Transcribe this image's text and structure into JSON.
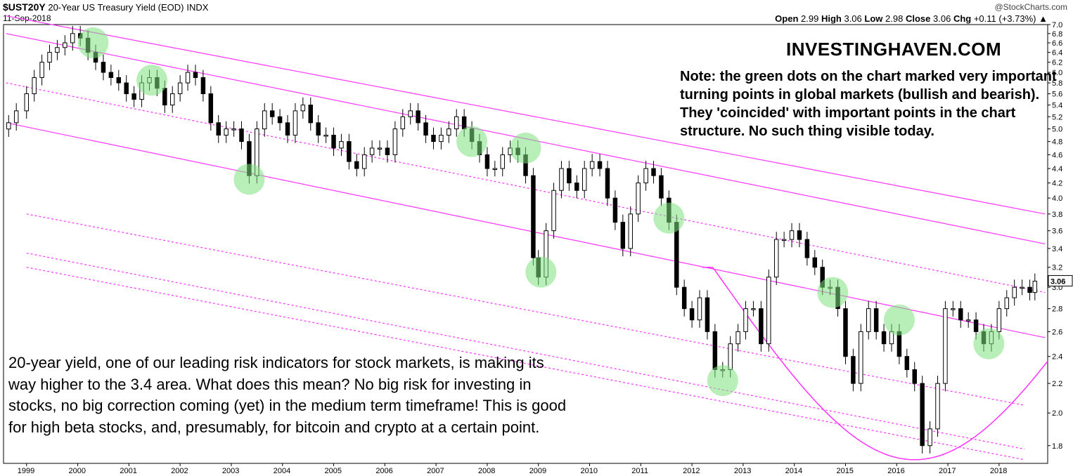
{
  "header": {
    "symbol": "$UST20Y",
    "description": "20-Year US Treasury Yield (EOD)",
    "exchange": "INDX",
    "date": "11-Sep-2018",
    "credit": "@StockCharts.com",
    "ohlc": {
      "open_label": "Open",
      "open": "2.99",
      "high_label": "High",
      "high": "3.06",
      "low_label": "Low",
      "low": "2.98",
      "close_label": "Close",
      "close": "3.06",
      "chg_label": "Chg",
      "chg": "+0.11 (+3.73%)"
    }
  },
  "annotations": {
    "brand": "INVESTINGHAVEN.COM",
    "note": "Note: the green dots on the chart marked very important turning points in global markets (bullish and bearish). They 'coincided' with important points in the chart structure. No such thing visible today.",
    "comment": "20-year yield, one of our leading risk indicators for stock markets, is making its way higher to the 3.4 area. What does this mean? No big risk for investing in stocks, no big correction coming (yet) in the medium term timeframe! This is good for high beta stocks, and, presumably, for bitcoin and crypto at a certain point."
  },
  "colors": {
    "channel": "#ff33ff",
    "marker_fill": "#7ee07e",
    "candle_up": "#ffffff",
    "candle_down": "#000000"
  },
  "chart_data": {
    "type": "candlestick",
    "title": "20-Year US Treasury Yield (EOD)",
    "xlabel": "",
    "ylabel": "",
    "x_ticks": [
      "1999",
      "2000",
      "2001",
      "2002",
      "2003",
      "2004",
      "2005",
      "2006",
      "2007",
      "2008",
      "2009",
      "2010",
      "2011",
      "2012",
      "2013",
      "2014",
      "2015",
      "2016",
      "2017",
      "2018"
    ],
    "y_ticks": [
      "1.8",
      "2.0",
      "2.2",
      "2.4",
      "2.6",
      "2.8",
      "3.0",
      "3.2",
      "3.4",
      "3.6",
      "3.8",
      "4.0",
      "4.2",
      "4.4",
      "4.6",
      "4.8",
      "5.0",
      "5.2",
      "5.4",
      "5.6",
      "5.8",
      "6.0",
      "6.2",
      "6.4",
      "6.6",
      "6.8",
      "7.0"
    ],
    "y_scale": "log",
    "ylim": [
      1.7,
      7.0
    ],
    "last_value": "3.06",
    "grid": false,
    "series": [
      {
        "name": "",
        "points": [
          [
            1998.65,
            5.1
          ],
          [
            1998.8,
            5.3
          ],
          [
            1999.0,
            5.6
          ],
          [
            1999.15,
            5.9
          ],
          [
            1999.3,
            6.2
          ],
          [
            1999.45,
            6.4
          ],
          [
            1999.6,
            6.5
          ],
          [
            1999.75,
            6.6
          ],
          [
            1999.9,
            6.8
          ],
          [
            2000.05,
            6.7
          ],
          [
            2000.2,
            6.4
          ],
          [
            2000.35,
            6.2
          ],
          [
            2000.5,
            6.0
          ],
          [
            2000.65,
            5.9
          ],
          [
            2000.8,
            5.8
          ],
          [
            2000.95,
            5.6
          ],
          [
            2001.1,
            5.5
          ],
          [
            2001.25,
            5.8
          ],
          [
            2001.4,
            5.9
          ],
          [
            2001.55,
            5.7
          ],
          [
            2001.7,
            5.4
          ],
          [
            2001.85,
            5.6
          ],
          [
            2002.0,
            5.8
          ],
          [
            2002.15,
            6.0
          ],
          [
            2002.3,
            5.9
          ],
          [
            2002.45,
            5.6
          ],
          [
            2002.6,
            5.1
          ],
          [
            2002.75,
            4.9
          ],
          [
            2002.9,
            5.0
          ],
          [
            2003.05,
            5.0
          ],
          [
            2003.2,
            4.8
          ],
          [
            2003.35,
            4.3
          ],
          [
            2003.5,
            5.0
          ],
          [
            2003.65,
            5.3
          ],
          [
            2003.8,
            5.2
          ],
          [
            2003.95,
            5.1
          ],
          [
            2004.1,
            4.9
          ],
          [
            2004.25,
            5.3
          ],
          [
            2004.4,
            5.4
          ],
          [
            2004.55,
            5.1
          ],
          [
            2004.7,
            4.9
          ],
          [
            2004.85,
            4.9
          ],
          [
            2005.0,
            4.7
          ],
          [
            2005.15,
            4.8
          ],
          [
            2005.3,
            4.5
          ],
          [
            2005.45,
            4.4
          ],
          [
            2005.6,
            4.6
          ],
          [
            2005.75,
            4.7
          ],
          [
            2005.9,
            4.7
          ],
          [
            2006.05,
            4.6
          ],
          [
            2006.2,
            5.0
          ],
          [
            2006.35,
            5.2
          ],
          [
            2006.5,
            5.3
          ],
          [
            2006.65,
            5.1
          ],
          [
            2006.8,
            4.9
          ],
          [
            2006.95,
            4.8
          ],
          [
            2007.1,
            4.9
          ],
          [
            2007.25,
            5.0
          ],
          [
            2007.4,
            5.2
          ],
          [
            2007.55,
            5.0
          ],
          [
            2007.7,
            4.8
          ],
          [
            2007.85,
            4.6
          ],
          [
            2008.0,
            4.4
          ],
          [
            2008.15,
            4.4
          ],
          [
            2008.3,
            4.6
          ],
          [
            2008.45,
            4.7
          ],
          [
            2008.6,
            4.6
          ],
          [
            2008.75,
            4.3
          ],
          [
            2008.9,
            3.3
          ],
          [
            2009.0,
            3.1
          ],
          [
            2009.15,
            3.6
          ],
          [
            2009.3,
            4.1
          ],
          [
            2009.45,
            4.4
          ],
          [
            2009.6,
            4.2
          ],
          [
            2009.75,
            4.1
          ],
          [
            2009.9,
            4.4
          ],
          [
            2010.05,
            4.5
          ],
          [
            2010.2,
            4.4
          ],
          [
            2010.35,
            4.0
          ],
          [
            2010.5,
            3.7
          ],
          [
            2010.65,
            3.4
          ],
          [
            2010.8,
            3.8
          ],
          [
            2010.95,
            4.2
          ],
          [
            2011.1,
            4.4
          ],
          [
            2011.25,
            4.3
          ],
          [
            2011.4,
            4.0
          ],
          [
            2011.55,
            3.7
          ],
          [
            2011.7,
            3.0
          ],
          [
            2011.85,
            2.8
          ],
          [
            2012.0,
            2.7
          ],
          [
            2012.15,
            2.9
          ],
          [
            2012.3,
            2.6
          ],
          [
            2012.45,
            2.3
          ],
          [
            2012.6,
            2.3
          ],
          [
            2012.75,
            2.5
          ],
          [
            2012.9,
            2.6
          ],
          [
            2013.05,
            2.8
          ],
          [
            2013.2,
            2.8
          ],
          [
            2013.35,
            2.5
          ],
          [
            2013.5,
            3.1
          ],
          [
            2013.65,
            3.5
          ],
          [
            2013.8,
            3.5
          ],
          [
            2013.95,
            3.6
          ],
          [
            2014.1,
            3.5
          ],
          [
            2014.25,
            3.3
          ],
          [
            2014.4,
            3.2
          ],
          [
            2014.55,
            3.0
          ],
          [
            2014.7,
            3.0
          ],
          [
            2014.85,
            2.8
          ],
          [
            2015.0,
            2.4
          ],
          [
            2015.15,
            2.2
          ],
          [
            2015.3,
            2.6
          ],
          [
            2015.45,
            2.8
          ],
          [
            2015.6,
            2.6
          ],
          [
            2015.75,
            2.5
          ],
          [
            2015.9,
            2.6
          ],
          [
            2016.05,
            2.4
          ],
          [
            2016.2,
            2.3
          ],
          [
            2016.35,
            2.2
          ],
          [
            2016.5,
            1.8
          ],
          [
            2016.65,
            1.9
          ],
          [
            2016.8,
            2.2
          ],
          [
            2016.95,
            2.8
          ],
          [
            2017.1,
            2.8
          ],
          [
            2017.25,
            2.7
          ],
          [
            2017.4,
            2.7
          ],
          [
            2017.55,
            2.6
          ],
          [
            2017.7,
            2.5
          ],
          [
            2017.85,
            2.6
          ],
          [
            2018.0,
            2.8
          ],
          [
            2018.15,
            2.9
          ],
          [
            2018.3,
            3.0
          ],
          [
            2018.45,
            3.0
          ],
          [
            2018.6,
            2.95
          ],
          [
            2018.7,
            3.06
          ]
        ]
      }
    ],
    "channel_lines": [
      {
        "style": "solid",
        "from": [
          1998.6,
          7.2
        ],
        "to": [
          2018.9,
          3.8
        ]
      },
      {
        "style": "solid",
        "from": [
          1998.6,
          6.8
        ],
        "to": [
          2018.9,
          3.45
        ]
      },
      {
        "style": "solid",
        "from": [
          1998.6,
          5.1
        ],
        "to": [
          2018.9,
          2.55
        ]
      },
      {
        "style": "dotted",
        "from": [
          1998.6,
          5.8
        ],
        "to": [
          2018.9,
          2.95
        ]
      },
      {
        "style": "dotted",
        "from": [
          1999.0,
          3.8
        ],
        "to": [
          2018.5,
          2.05
        ]
      },
      {
        "style": "dotted",
        "from": [
          1999.0,
          3.35
        ],
        "to": [
          2018.5,
          1.78
        ]
      },
      {
        "style": "dotted",
        "from": [
          1999.0,
          3.2
        ],
        "to": [
          2018.5,
          1.72
        ]
      }
    ],
    "highlights": [
      [
        2000.3,
        6.6
      ],
      [
        2001.45,
        5.85
      ],
      [
        2003.35,
        4.25
      ],
      [
        2007.7,
        4.8
      ],
      [
        2008.75,
        4.7
      ],
      [
        2009.05,
        3.15
      ],
      [
        2011.55,
        3.75
      ],
      [
        2012.6,
        2.22
      ],
      [
        2014.75,
        2.95
      ],
      [
        2016.05,
        2.7
      ],
      [
        2017.8,
        2.5
      ]
    ]
  }
}
